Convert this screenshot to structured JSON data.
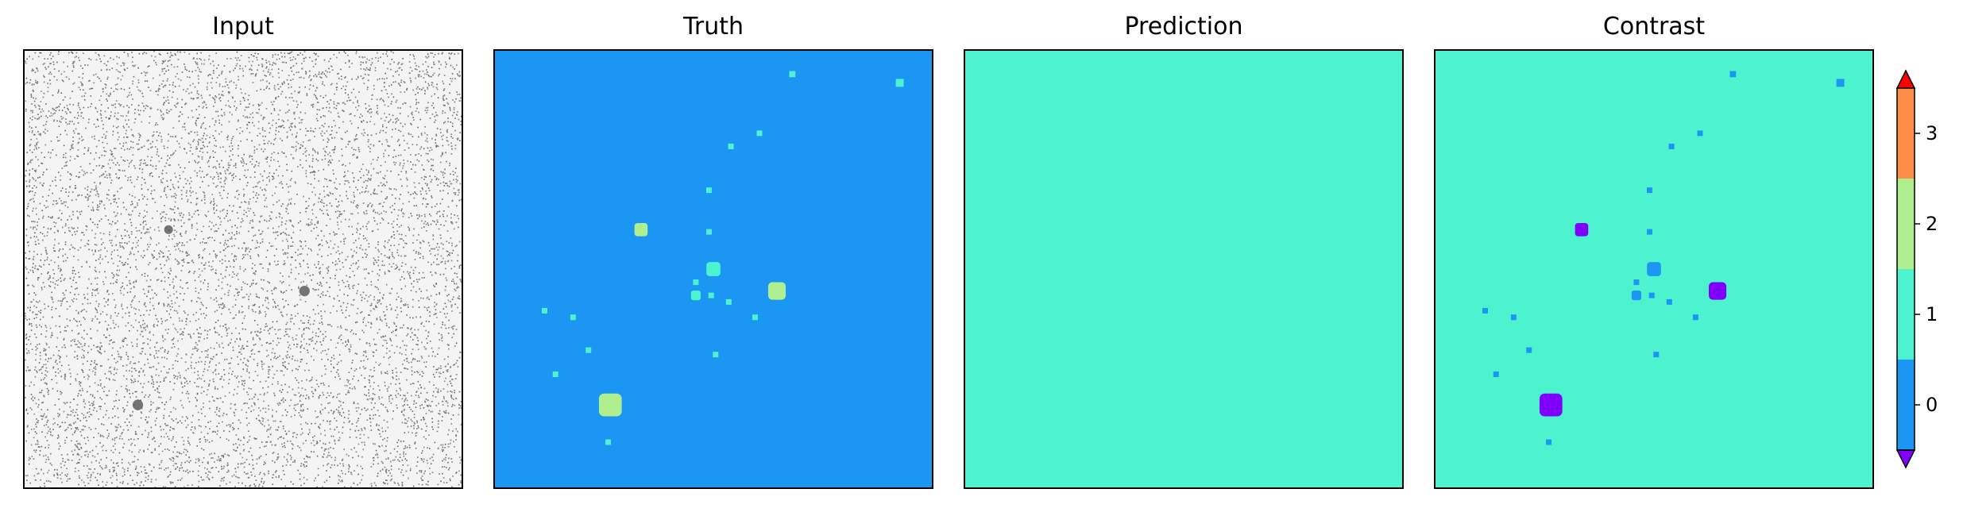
{
  "colors": {
    "class_0": "#1b96f3",
    "class_1": "#4df3ce",
    "class_2": "#b0ef8f",
    "class_3": "#ff8c47",
    "under": "#8000ff",
    "over": "#ff0000",
    "input_bg": "#f4f4f4"
  },
  "chart_data": [
    {
      "type": "heatmap",
      "title": "Input",
      "description_kind": "grayscale noise image",
      "blobs": [
        {
          "x": 0.33,
          "y": 0.41,
          "r": 0.01
        },
        {
          "x": 0.64,
          "y": 0.55,
          "r": 0.012
        },
        {
          "x": 0.26,
          "y": 0.81,
          "r": 0.012
        }
      ]
    },
    {
      "type": "heatmap",
      "title": "Truth",
      "background_class": 0,
      "objects": [
        {
          "x": 0.68,
          "y": 0.055,
          "r": 0.007,
          "class": 1
        },
        {
          "x": 0.925,
          "y": 0.075,
          "r": 0.009,
          "class": 1
        },
        {
          "x": 0.605,
          "y": 0.19,
          "r": 0.006,
          "class": 1
        },
        {
          "x": 0.54,
          "y": 0.22,
          "r": 0.006,
          "class": 1
        },
        {
          "x": 0.49,
          "y": 0.32,
          "r": 0.006,
          "class": 1
        },
        {
          "x": 0.335,
          "y": 0.41,
          "r": 0.015,
          "class": 2
        },
        {
          "x": 0.49,
          "y": 0.415,
          "r": 0.006,
          "class": 1
        },
        {
          "x": 0.5,
          "y": 0.5,
          "r": 0.016,
          "class": 1
        },
        {
          "x": 0.46,
          "y": 0.53,
          "r": 0.006,
          "class": 1
        },
        {
          "x": 0.645,
          "y": 0.55,
          "r": 0.02,
          "class": 2
        },
        {
          "x": 0.46,
          "y": 0.56,
          "r": 0.011,
          "class": 1
        },
        {
          "x": 0.495,
          "y": 0.56,
          "r": 0.006,
          "class": 1
        },
        {
          "x": 0.535,
          "y": 0.575,
          "r": 0.006,
          "class": 1
        },
        {
          "x": 0.115,
          "y": 0.595,
          "r": 0.006,
          "class": 1
        },
        {
          "x": 0.18,
          "y": 0.61,
          "r": 0.006,
          "class": 1
        },
        {
          "x": 0.595,
          "y": 0.61,
          "r": 0.006,
          "class": 1
        },
        {
          "x": 0.215,
          "y": 0.685,
          "r": 0.006,
          "class": 1
        },
        {
          "x": 0.505,
          "y": 0.695,
          "r": 0.006,
          "class": 1
        },
        {
          "x": 0.14,
          "y": 0.74,
          "r": 0.006,
          "class": 1
        },
        {
          "x": 0.265,
          "y": 0.81,
          "r": 0.026,
          "class": 2
        },
        {
          "x": 0.26,
          "y": 0.895,
          "r": 0.006,
          "class": 1
        }
      ]
    },
    {
      "type": "heatmap",
      "title": "Prediction",
      "background_class": 1,
      "objects": []
    },
    {
      "type": "heatmap",
      "title": "Contrast",
      "background_class": 1,
      "objects": [
        {
          "x": 0.68,
          "y": 0.055,
          "r": 0.007,
          "class": 0
        },
        {
          "x": 0.925,
          "y": 0.075,
          "r": 0.009,
          "class": 0
        },
        {
          "x": 0.605,
          "y": 0.19,
          "r": 0.006,
          "class": 0
        },
        {
          "x": 0.54,
          "y": 0.22,
          "r": 0.006,
          "class": 0
        },
        {
          "x": 0.49,
          "y": 0.32,
          "r": 0.006,
          "class": 0
        },
        {
          "x": 0.335,
          "y": 0.41,
          "r": 0.015,
          "class": -1
        },
        {
          "x": 0.49,
          "y": 0.415,
          "r": 0.006,
          "class": 0
        },
        {
          "x": 0.5,
          "y": 0.5,
          "r": 0.016,
          "class": 0
        },
        {
          "x": 0.46,
          "y": 0.53,
          "r": 0.006,
          "class": 0
        },
        {
          "x": 0.645,
          "y": 0.55,
          "r": 0.02,
          "class": -1
        },
        {
          "x": 0.46,
          "y": 0.56,
          "r": 0.011,
          "class": 0
        },
        {
          "x": 0.495,
          "y": 0.56,
          "r": 0.006,
          "class": 0
        },
        {
          "x": 0.535,
          "y": 0.575,
          "r": 0.006,
          "class": 0
        },
        {
          "x": 0.115,
          "y": 0.595,
          "r": 0.006,
          "class": 0
        },
        {
          "x": 0.18,
          "y": 0.61,
          "r": 0.006,
          "class": 0
        },
        {
          "x": 0.595,
          "y": 0.61,
          "r": 0.006,
          "class": 0
        },
        {
          "x": 0.215,
          "y": 0.685,
          "r": 0.006,
          "class": 0
        },
        {
          "x": 0.505,
          "y": 0.695,
          "r": 0.006,
          "class": 0
        },
        {
          "x": 0.14,
          "y": 0.74,
          "r": 0.006,
          "class": 0
        },
        {
          "x": 0.265,
          "y": 0.81,
          "r": 0.026,
          "class": -1
        },
        {
          "x": 0.26,
          "y": 0.895,
          "r": 0.006,
          "class": 0
        }
      ]
    }
  ],
  "colorbar": {
    "ticks": [
      {
        "value": 0,
        "label": "0"
      },
      {
        "value": 1,
        "label": "1"
      },
      {
        "value": 2,
        "label": "2"
      },
      {
        "value": 3,
        "label": "3"
      }
    ],
    "range": [
      -0.5,
      3.5
    ],
    "extend": "both"
  }
}
